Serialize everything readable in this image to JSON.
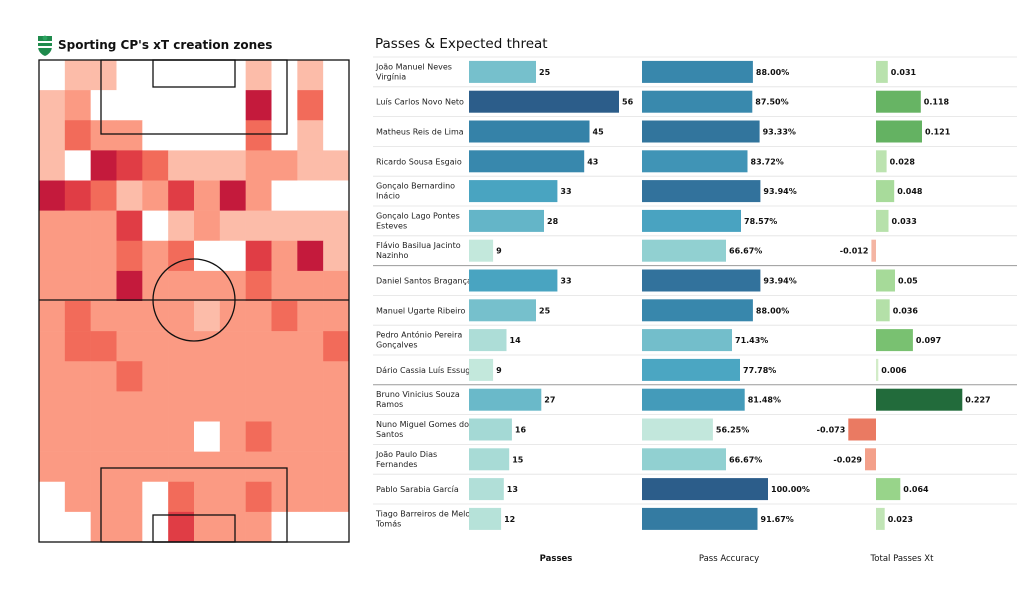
{
  "left_panel": {
    "title": "Sporting CP's xT creation zones",
    "logo_icon": "sporting-lion-crest-icon"
  },
  "right_panel": {
    "title": "Passes & Expected threat"
  },
  "chart_data": [
    {
      "type": "heatmap",
      "title": "Sporting CP's xT creation zones",
      "rows": 16,
      "cols": 12,
      "intensity": [
        [
          0,
          1,
          1,
          0,
          0,
          0,
          0,
          0,
          1,
          0,
          1,
          0
        ],
        [
          1,
          2,
          0,
          0,
          0,
          0,
          0,
          0,
          5,
          0,
          3,
          0
        ],
        [
          1,
          3,
          2,
          2,
          0,
          0,
          0,
          0,
          3,
          0,
          1,
          0
        ],
        [
          1,
          0,
          5,
          4,
          3,
          1,
          1,
          1,
          2,
          2,
          1,
          1
        ],
        [
          5,
          4,
          3,
          1,
          2,
          4,
          2,
          5,
          2,
          0,
          0,
          0
        ],
        [
          2,
          2,
          2,
          4,
          0,
          1,
          2,
          1,
          1,
          1,
          1,
          1
        ],
        [
          2,
          2,
          2,
          3,
          2,
          3,
          0,
          0,
          4,
          2,
          5,
          1
        ],
        [
          2,
          2,
          2,
          5,
          2,
          2,
          2,
          2,
          3,
          2,
          2,
          2
        ],
        [
          2,
          3,
          2,
          2,
          2,
          2,
          1,
          2,
          2,
          3,
          2,
          2
        ],
        [
          2,
          3,
          3,
          2,
          2,
          2,
          2,
          2,
          2,
          2,
          2,
          3
        ],
        [
          2,
          2,
          2,
          3,
          2,
          2,
          2,
          2,
          2,
          2,
          2,
          2
        ],
        [
          2,
          2,
          2,
          2,
          2,
          2,
          2,
          2,
          2,
          2,
          2,
          2
        ],
        [
          2,
          2,
          2,
          2,
          2,
          2,
          0,
          2,
          3,
          2,
          2,
          2
        ],
        [
          2,
          2,
          2,
          2,
          2,
          2,
          2,
          2,
          2,
          2,
          2,
          2
        ],
        [
          0,
          2,
          2,
          2,
          0,
          3,
          2,
          2,
          3,
          2,
          2,
          2
        ],
        [
          0,
          0,
          2,
          2,
          0,
          4,
          2,
          2,
          2,
          0,
          0,
          0
        ]
      ]
    },
    {
      "type": "bar",
      "title": "Passes & Expected threat",
      "players": [
        [
          "João Manuel Neves",
          "Virgínia"
        ],
        [
          "Luís Carlos Novo Neto"
        ],
        [
          "Matheus Reis de Lima"
        ],
        [
          "Ricardo Sousa Esgaio"
        ],
        [
          "Gonçalo Bernardino",
          "Inácio"
        ],
        [
          "Gonçalo Lago Pontes",
          "Esteves"
        ],
        [
          "Flávio Basilua Jacinto",
          "Nazinho"
        ],
        [
          "Daniel Santos Bragança"
        ],
        [
          "Manuel Ugarte Ribeiro"
        ],
        [
          "Pedro António Pereira",
          "Gonçalves"
        ],
        [
          "Dário Cassia Luís Essugo"
        ],
        [
          "Bruno Vinicius Souza",
          "Ramos"
        ],
        [
          "Nuno Miguel Gomes dos",
          "Santos"
        ],
        [
          "João Paulo Dias",
          "Fernandes"
        ],
        [
          "Pablo Sarabia García"
        ],
        [
          "Tiago Barreiros de Melo",
          "Tomás"
        ]
      ],
      "series": [
        {
          "name": "Passes",
          "values": [
            25,
            56,
            45,
            43,
            33,
            28,
            9,
            33,
            25,
            14,
            9,
            27,
            16,
            15,
            13,
            12
          ],
          "labels": [
            "25",
            "56",
            "45",
            "43",
            "33",
            "28",
            "9",
            "33",
            "25",
            "14",
            "9",
            "27",
            "16",
            "15",
            "13",
            "12"
          ]
        },
        {
          "name": "Pass Accuracy",
          "values": [
            88.0,
            87.5,
            93.33,
            83.72,
            93.94,
            78.57,
            66.67,
            93.94,
            88.0,
            71.43,
            77.78,
            81.48,
            56.25,
            66.67,
            100.0,
            91.67
          ],
          "labels": [
            "88.00%",
            "87.50%",
            "93.33%",
            "83.72%",
            "93.94%",
            "78.57%",
            "66.67%",
            "93.94%",
            "88.00%",
            "71.43%",
            "77.78%",
            "81.48%",
            "56.25%",
            "66.67%",
            "100.00%",
            "91.67%"
          ]
        },
        {
          "name": "Total Passes Xt",
          "values": [
            0.031,
            0.118,
            0.121,
            0.028,
            0.048,
            0.033,
            -0.012,
            0.05,
            0.036,
            0.097,
            0.006,
            0.227,
            -0.073,
            -0.029,
            0.064,
            0.023
          ],
          "labels": [
            "0.031",
            "0.118",
            "0.121",
            "0.028",
            "0.048",
            "0.033",
            "-0.012",
            "0.05",
            "0.036",
            "0.097",
            "0.006",
            "0.227",
            "-0.073",
            "-0.029",
            "0.064",
            "0.023"
          ]
        }
      ],
      "group_separators_after": [
        6,
        10
      ],
      "xlabel_bold": "Passes"
    }
  ]
}
